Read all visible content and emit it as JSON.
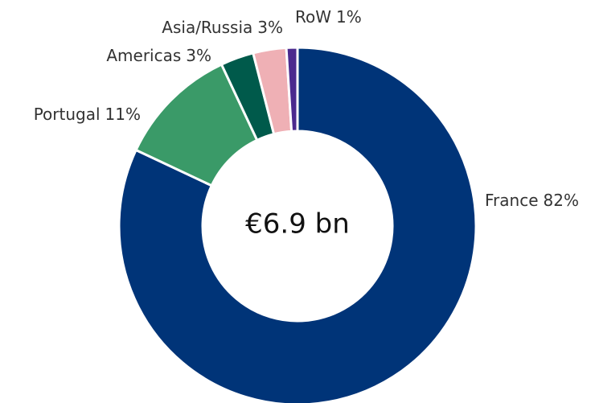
{
  "chart_data": {
    "type": "donut",
    "categories": [
      "France",
      "Portugal",
      "Americas",
      "Asia/Russia",
      "RoW"
    ],
    "values": [
      82,
      11,
      3,
      3,
      1
    ],
    "value_labels": [
      "82%",
      "11%",
      "3%",
      "3%",
      "1%"
    ],
    "colors": [
      "#003478",
      "#3a9a68",
      "#005a4b",
      "#efb0b5",
      "#4b2a8e"
    ],
    "center_label": "€6.9 bn"
  }
}
